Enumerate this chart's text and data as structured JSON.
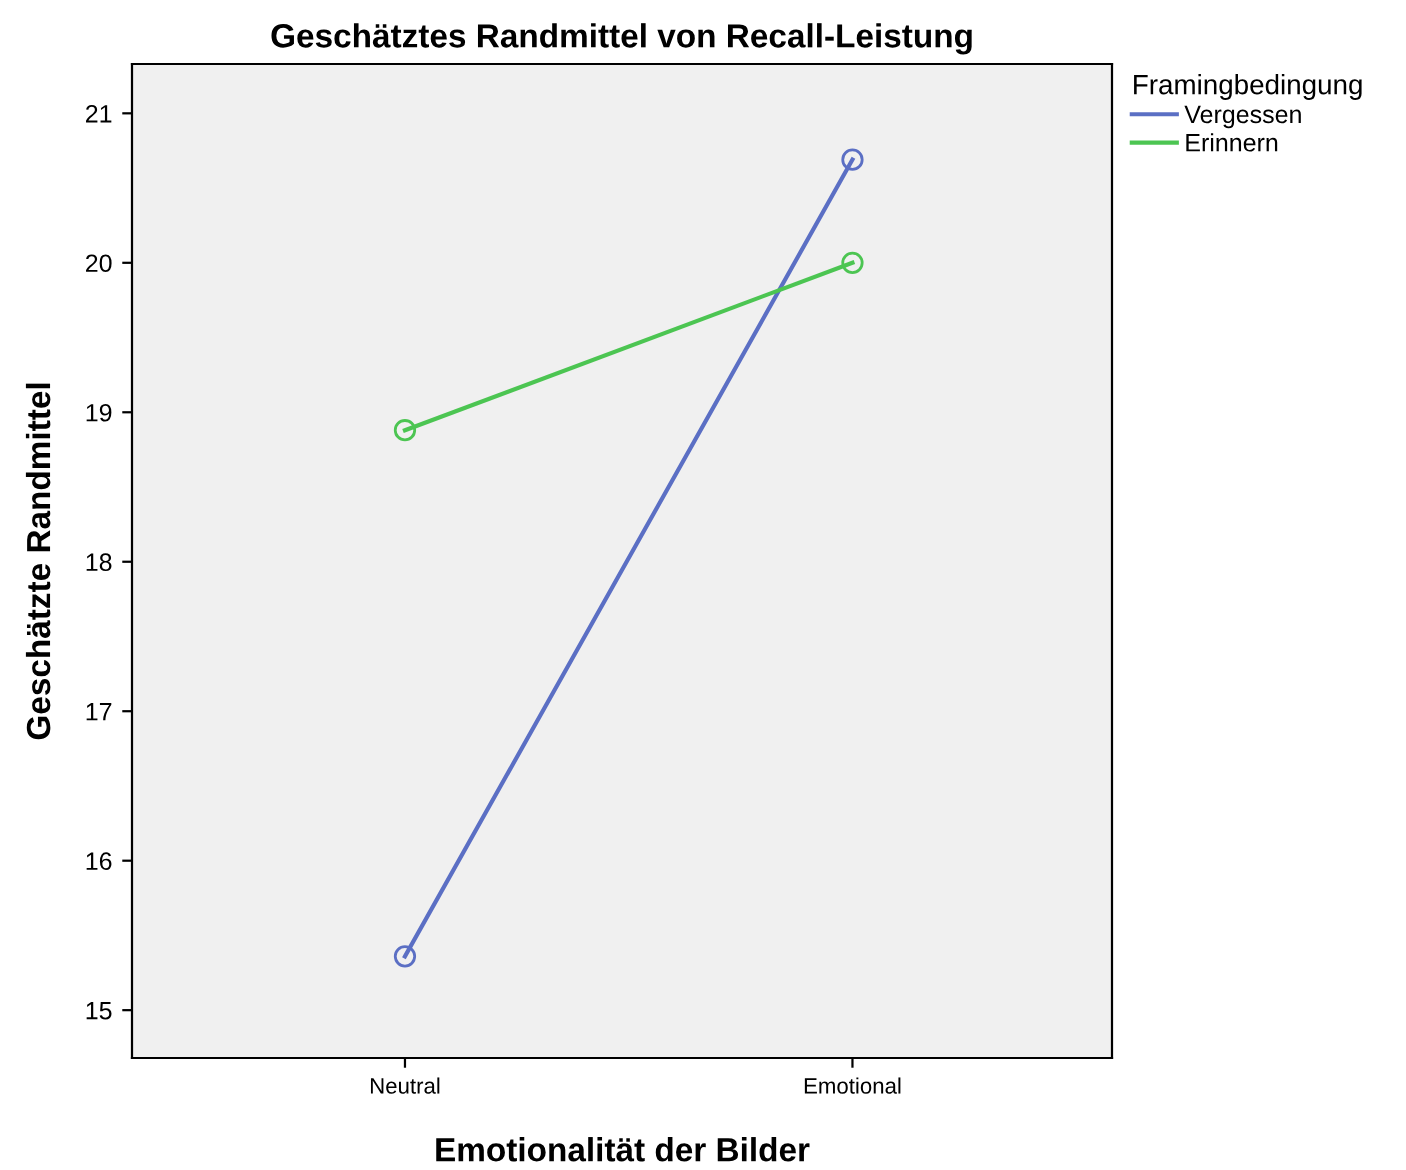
{
  "chart_data": {
    "type": "line",
    "title": "Geschätztes Randmittel von Recall-Leistung",
    "xlabel": "Emotionalität der Bilder",
    "ylabel": "Geschätzte Randmittel",
    "legend_title": "Framingbedingung",
    "categories": [
      "Neutral",
      "Emotional"
    ],
    "series": [
      {
        "name": "Vergessen",
        "color": "#5b6fc4",
        "values": [
          15.36,
          20.69
        ]
      },
      {
        "name": "Erinnern",
        "color": "#4cc552",
        "values": [
          18.88,
          20.0
        ]
      }
    ],
    "ylim": [
      14.68,
      21.33
    ],
    "yticks": [
      15,
      16,
      17,
      18,
      19,
      20,
      21
    ],
    "grid": false,
    "legend": "top right",
    "marker": "circle",
    "line_style": "solid"
  }
}
